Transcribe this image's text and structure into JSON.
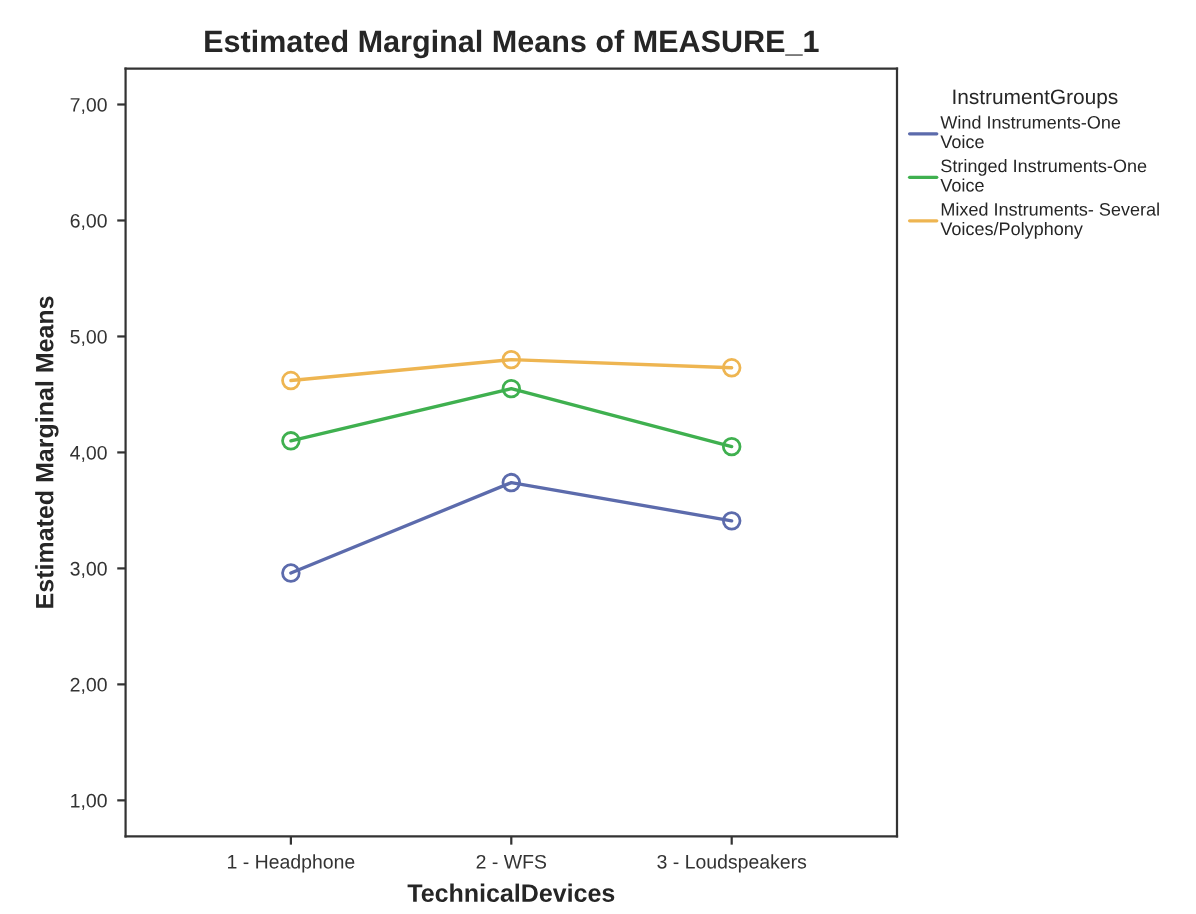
{
  "chart_data": {
    "type": "line",
    "title": "Estimated Marginal Means of MEASURE_1",
    "xlabel": "TechnicalDevices",
    "ylabel": "Estimated Marginal Means",
    "legend_title": "InstrumentGroups",
    "categories": [
      "1 - Headphone",
      "2 - WFS",
      "3 - Loudspeakers"
    ],
    "series": [
      {
        "name": "Wind Instruments-One Voice",
        "color": "#5c6bac",
        "values": [
          2.96,
          3.74,
          3.41
        ]
      },
      {
        "name": "Stringed Instruments-One Voice",
        "color": "#3fb04f",
        "values": [
          4.1,
          4.55,
          4.05
        ]
      },
      {
        "name": "Mixed Instruments- Several Voices/Polyphony",
        "color": "#eeb551",
        "values": [
          4.62,
          4.8,
          4.73
        ]
      }
    ],
    "ylim": [
      0.69,
      7.31
    ],
    "yticks": [
      {
        "value": 1,
        "label": "1,00"
      },
      {
        "value": 2,
        "label": "2,00"
      },
      {
        "value": 3,
        "label": "3,00"
      },
      {
        "value": 4,
        "label": "4,00"
      },
      {
        "value": 5,
        "label": "5,00"
      },
      {
        "value": 6,
        "label": "6,00"
      },
      {
        "value": 7,
        "label": "7,00"
      }
    ],
    "marker": "circle",
    "grid": false,
    "legend": "right"
  }
}
